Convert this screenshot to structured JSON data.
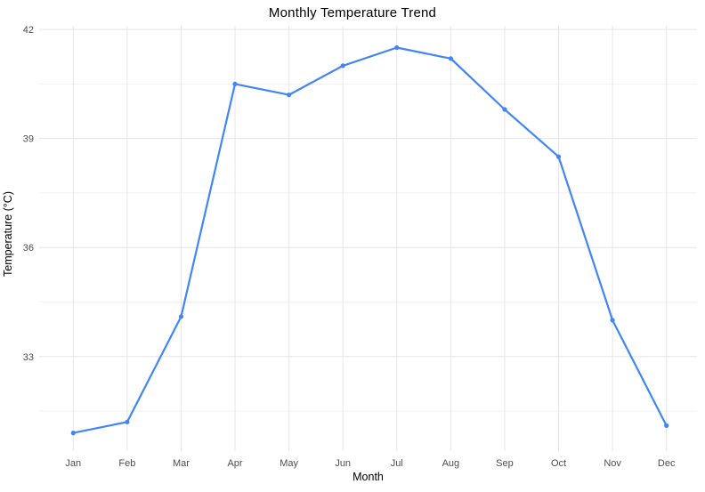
{
  "chart_data": {
    "type": "line",
    "title": "Monthly Temperature Trend",
    "xlabel": "Month",
    "ylabel": "Temperature (°C)",
    "categories": [
      "Jan",
      "Feb",
      "Mar",
      "Apr",
      "May",
      "Jun",
      "Jul",
      "Aug",
      "Sep",
      "Oct",
      "Nov",
      "Dec"
    ],
    "series": [
      {
        "name": "Temperature",
        "values": [
          30.9,
          31.2,
          34.1,
          40.5,
          40.2,
          41.0,
          41.5,
          41.2,
          39.8,
          38.5,
          34.0,
          31.1
        ]
      }
    ],
    "ylim": [
      30.4,
      42.1
    ],
    "yticks": [
      33,
      36,
      39,
      42
    ],
    "yticks_minor": [
      31.5,
      34.5,
      37.5,
      40.5
    ],
    "grid": "major+minor",
    "legend": "none",
    "colors": {
      "line": "#4285f4",
      "point": "#4285f4",
      "grid_major": "#e6e6e6",
      "grid_minor": "#f1f1f1",
      "tick_label": "#4d4d4d",
      "text": "#000000",
      "background": "#ffffff"
    }
  }
}
